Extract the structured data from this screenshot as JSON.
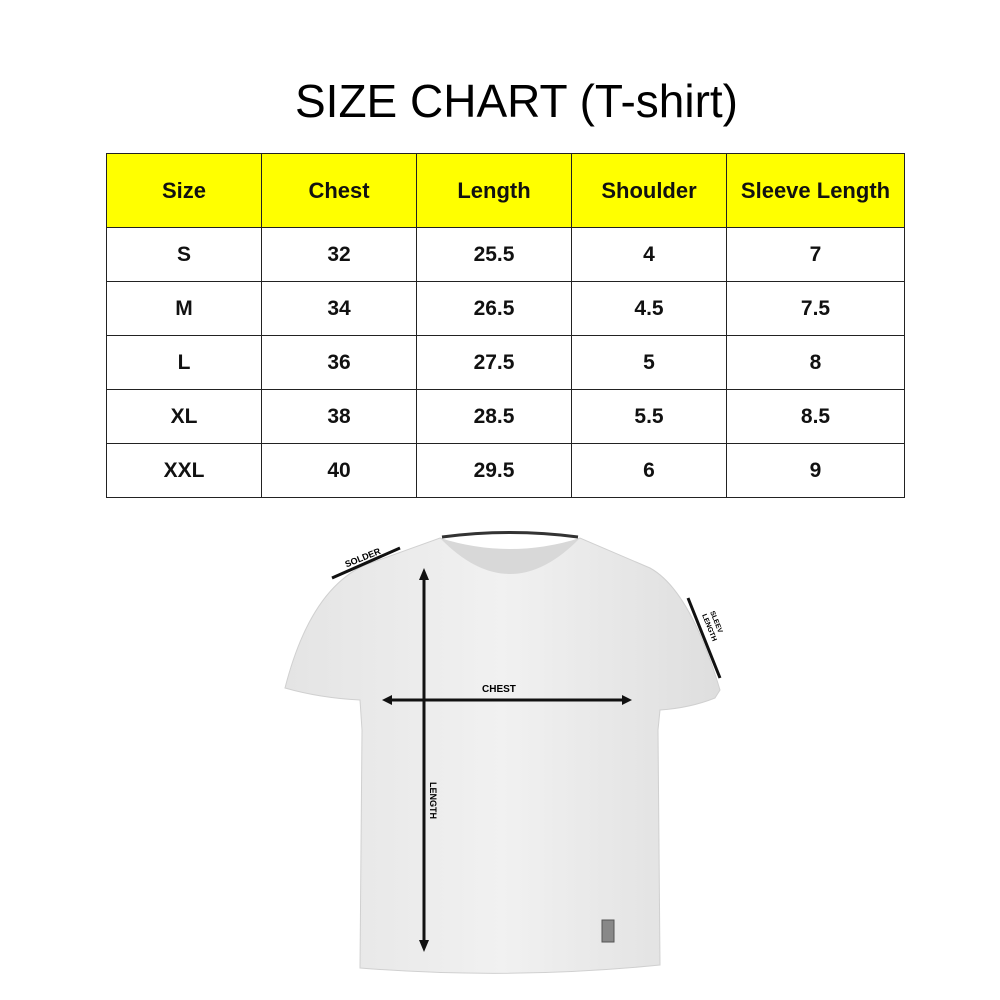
{
  "title": "SIZE CHART (T-shirt)",
  "table": {
    "headers": [
      "Size",
      "Chest",
      "Length",
      "Shoulder",
      "Sleeve Length"
    ],
    "rows": [
      [
        "S",
        "32",
        "25.5",
        "4",
        "7"
      ],
      [
        "M",
        "34",
        "26.5",
        "4.5",
        "7.5"
      ],
      [
        "L",
        "36",
        "27.5",
        "5",
        "8"
      ],
      [
        "XL",
        "38",
        "28.5",
        "5.5",
        "8.5"
      ],
      [
        "XXL",
        "40",
        "29.5",
        "6",
        "9"
      ]
    ],
    "header_color": "#ffff00"
  },
  "diagram": {
    "shoulder_label": "SOLDER",
    "sleeve_label_line1": "SLEEV",
    "sleeve_label_line2": "LENGTH",
    "chest_label": "CHEST",
    "length_label": "LENGTH"
  }
}
